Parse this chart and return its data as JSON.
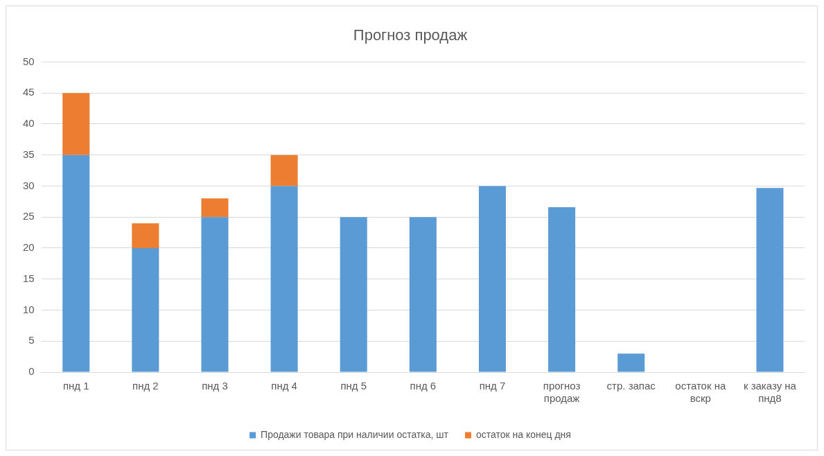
{
  "chart_data": {
    "type": "bar",
    "title": "Прогноз продаж",
    "categories": [
      "пнд 1",
      "пнд 2",
      "пнд 3",
      "пнд 4",
      "пнд 5",
      "пнд 6",
      "пнд 7",
      "прогноз продаж",
      "стр. запас",
      "остаток на вскр",
      "к заказу на пнд8"
    ],
    "series": [
      {
        "name": "Продажи товара при наличии остатка, шт",
        "color": "#5b9bd5",
        "values": [
          35,
          20,
          25,
          30,
          25,
          25,
          30,
          26.6,
          3,
          0,
          29.7
        ]
      },
      {
        "name": "остаток на конец дня",
        "color": "#ed7d31",
        "values": [
          10,
          4,
          3,
          5,
          null,
          null,
          null,
          null,
          null,
          null,
          null
        ]
      }
    ],
    "stacked": true,
    "ylim": [
      0,
      50
    ],
    "yticks": [
      0,
      5,
      10,
      15,
      20,
      25,
      30,
      35,
      40,
      45,
      50
    ],
    "grid": "y",
    "legend": "bottom"
  }
}
